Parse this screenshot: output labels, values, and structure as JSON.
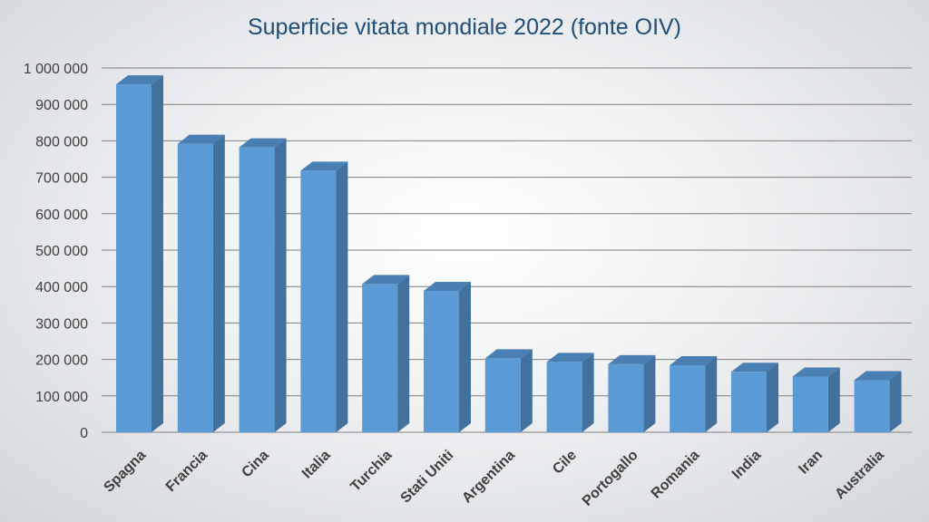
{
  "chart_data": {
    "type": "bar",
    "title": "Superficie vitata mondiale 2022 (fonte OIV)",
    "xlabel": "",
    "ylabel": "",
    "categories": [
      "Spagna",
      "Francia",
      "Cina",
      "Italia",
      "Turchia",
      "Stati Uniti",
      "Argentina",
      "Cile",
      "Portogallo",
      "Romania",
      "India",
      "Iran",
      "Australia"
    ],
    "values": [
      955000,
      792000,
      782000,
      718000,
      407000,
      388000,
      203000,
      193000,
      187000,
      184000,
      166000,
      153000,
      143000
    ],
    "ylim": [
      0,
      1000000
    ],
    "yticks": [
      0,
      100000,
      200000,
      300000,
      400000,
      500000,
      600000,
      700000,
      800000,
      900000,
      1000000
    ],
    "ytick_labels": [
      "0",
      "100 000",
      "200 000",
      "300 000",
      "400 000",
      "500 000",
      "600 000",
      "700 000",
      "800 000",
      "900 000",
      "1 000 000"
    ],
    "grid": true,
    "legend": "none",
    "colors": {
      "bar_front": "#5b9bd5",
      "bar_side": "#41719c",
      "bar_top": "#4a7fb3",
      "grid": "#7f7f7f",
      "title": "#1f4e79",
      "tick_text": "#404040"
    }
  }
}
